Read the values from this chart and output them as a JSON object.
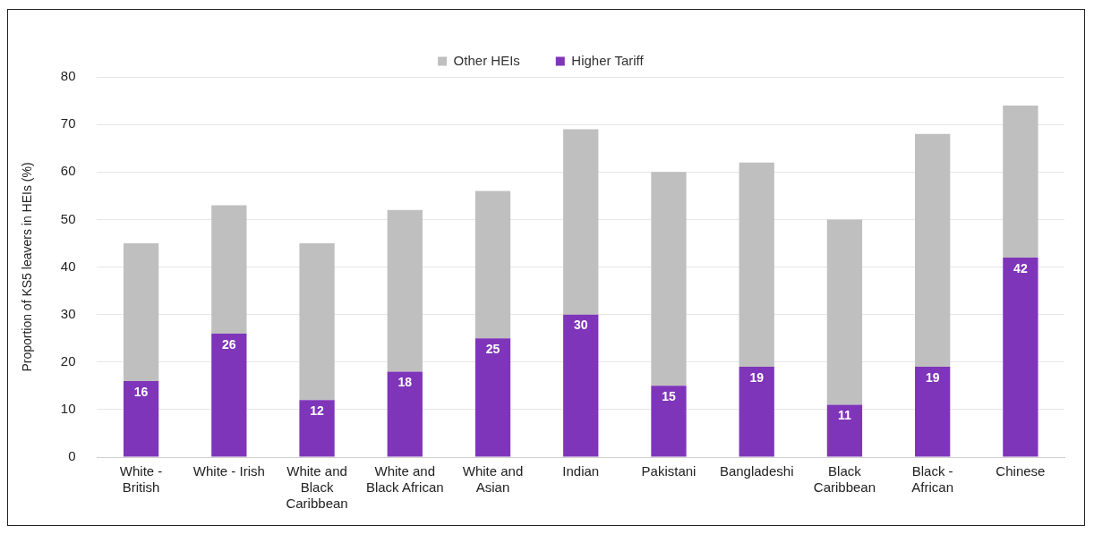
{
  "chart_data": {
    "type": "bar",
    "stacked": true,
    "ylabel": "Proportion of KS5 leavers in HEIs (%)",
    "categories": [
      "White - British",
      "White - Irish",
      "White and Black Caribbean",
      "White and Black African",
      "White and Asian",
      "Indian",
      "Pakistani",
      "Bangladeshi",
      "Black Caribbean",
      "Black - African",
      "Chinese"
    ],
    "series": [
      {
        "name": "Higher Tariff",
        "color": "#7f35b9",
        "values": [
          16,
          26,
          12,
          18,
          25,
          30,
          15,
          19,
          11,
          19,
          42
        ],
        "value_labels": [
          "16",
          "26",
          "12",
          "18",
          "25",
          "30",
          "15",
          "19",
          "11",
          "19",
          "42"
        ]
      },
      {
        "name": "Other HEIs",
        "color": "#bfbfbf",
        "values": [
          29,
          27,
          33,
          34,
          31,
          39,
          45,
          43,
          39,
          49,
          32
        ]
      }
    ],
    "ylim": [
      0,
      80
    ],
    "yticks": [
      0,
      10,
      20,
      30,
      40,
      50,
      60,
      70,
      80
    ],
    "grid": "y",
    "legend": "top"
  }
}
